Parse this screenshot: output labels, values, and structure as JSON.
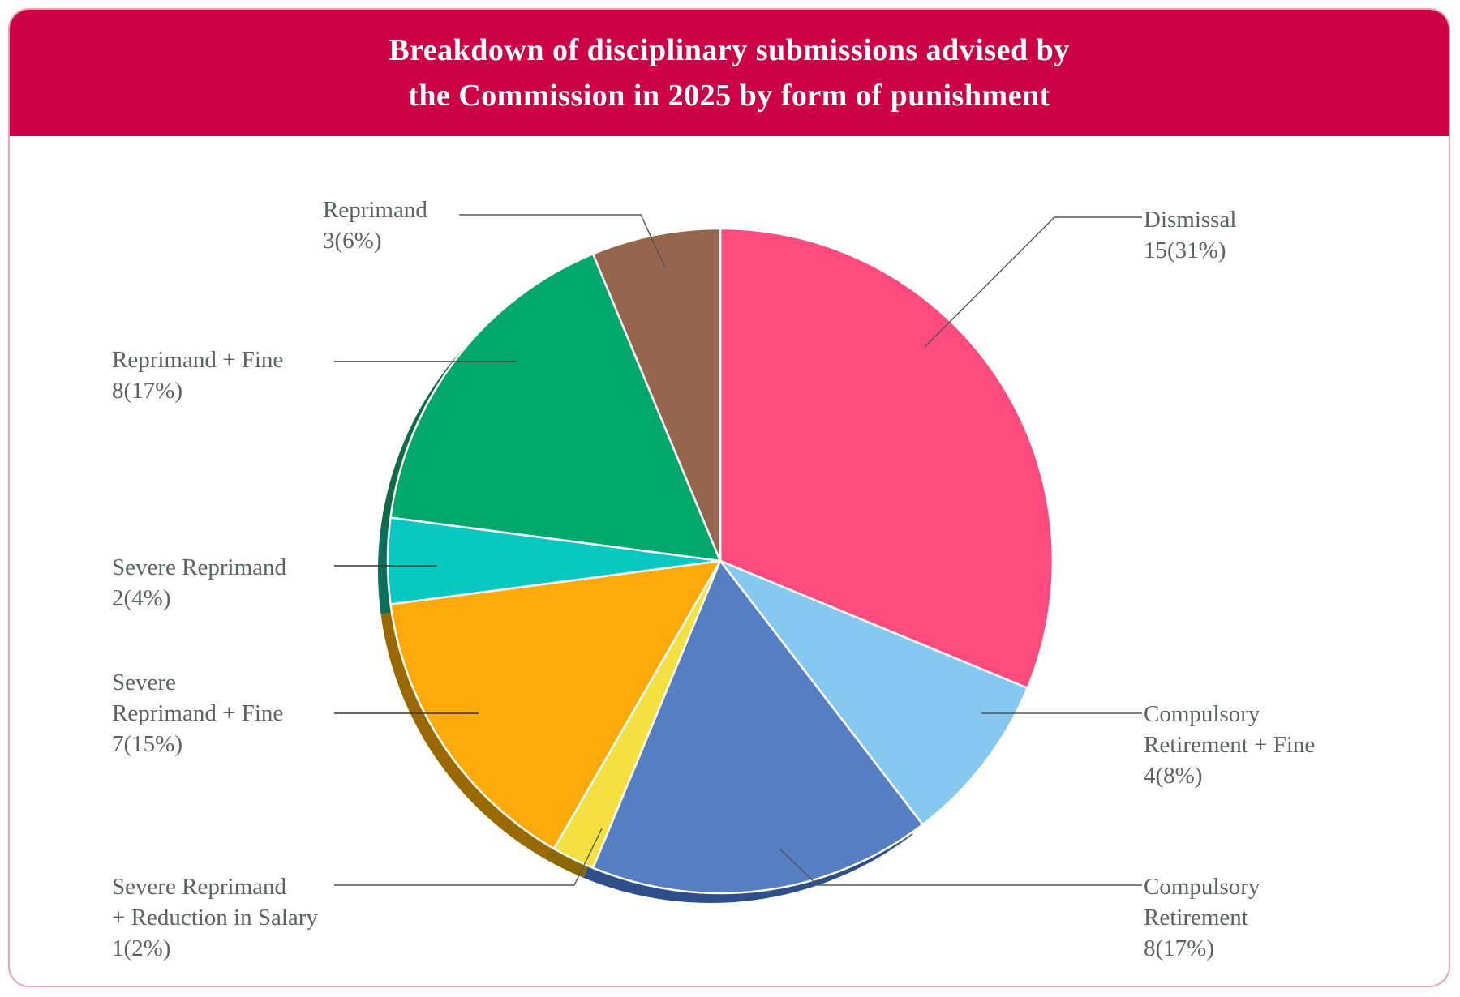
{
  "header": {
    "title_line1": "Breakdown of disciplinary submissions advised by",
    "title_line2": "the Commission in 2025 by form of punishment"
  },
  "chart_data": {
    "type": "pie",
    "title": "Breakdown of disciplinary submissions advised by the Commission in 2025 by form of punishment",
    "total": 48,
    "start": "12 o'clock",
    "direction": "clockwise",
    "slices": [
      {
        "key": "dismissal",
        "label": "Dismissal",
        "value": 15,
        "percent": 31,
        "display": "15(31%)",
        "color": "#ff4b7e"
      },
      {
        "key": "crf",
        "label": "Compulsory Retirement + Fine",
        "value": 4,
        "percent": 8,
        "display": "4(8%)",
        "color": "#86c8f0"
      },
      {
        "key": "cr",
        "label": "Compulsory Retirement",
        "value": 8,
        "percent": 17,
        "display": "8(17%)",
        "color": "#557ec3"
      },
      {
        "key": "srrs",
        "label": "Severe Reprimand + Reduction in Salary",
        "value": 1,
        "percent": 2,
        "display": "1(2%)",
        "color": "#f5e042"
      },
      {
        "key": "srf",
        "label": "Severe Reprimand + Fine",
        "value": 7,
        "percent": 15,
        "display": "7(15%)",
        "color": "#fdaa0a"
      },
      {
        "key": "sr",
        "label": "Severe Reprimand",
        "value": 2,
        "percent": 4,
        "display": "2(4%)",
        "color": "#08c8c0"
      },
      {
        "key": "rf",
        "label": "Reprimand + Fine",
        "value": 8,
        "percent": 17,
        "display": "8(17%)",
        "color": "#00a86b"
      },
      {
        "key": "r",
        "label": "Reprimand",
        "value": 3,
        "percent": 6,
        "display": "3(6%)",
        "color": "#95664d"
      }
    ]
  },
  "labels": {
    "dismissal": [
      "Dismissal",
      "15(31%)"
    ],
    "crf": [
      "Compulsory",
      "Retirement + Fine",
      "4(8%)"
    ],
    "cr": [
      "Compulsory",
      "Retirement",
      "8(17%)"
    ],
    "srrs": [
      "Severe Reprimand",
      "+ Reduction in Salary",
      "1(2%)"
    ],
    "srf": [
      "Severe",
      "Reprimand + Fine",
      "7(15%)"
    ],
    "sr": [
      "Severe Reprimand",
      "2(4%)"
    ],
    "rf": [
      "Reprimand + Fine",
      "8(17%)"
    ],
    "r": [
      "Reprimand",
      "3(6%)"
    ]
  }
}
